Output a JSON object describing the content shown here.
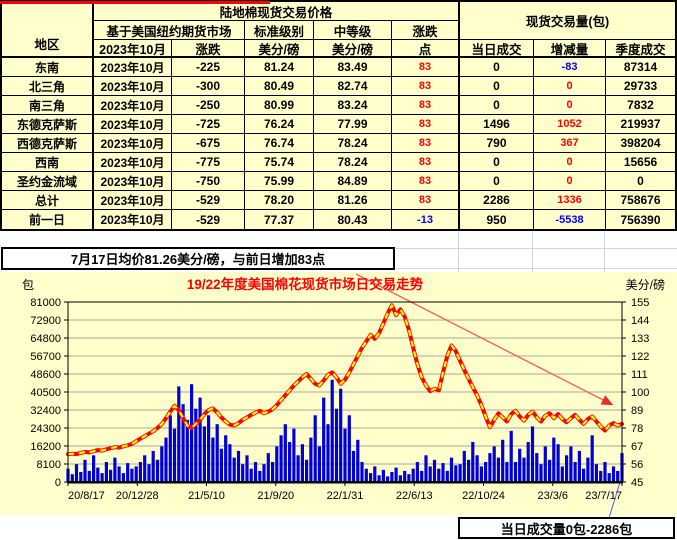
{
  "table": {
    "title": "陆地棉现货交易价格",
    "volume_title": "现货交易量(包)",
    "region_header": "地区",
    "group_headers": {
      "futures": "基于美国纽约期货市场",
      "standard": "标准级别",
      "middle": "中等级",
      "change": "涨跌"
    },
    "col_headers": {
      "month": "2023年10月",
      "change": "涨跌",
      "std_unit": "美分/磅",
      "mid_unit": "美分/磅",
      "points": "点",
      "daily": "当日成交",
      "delta": "增减量",
      "quarter": "季度成交"
    },
    "rows": [
      {
        "region": "东南",
        "month": "2023年10月",
        "change": "-225",
        "std": "81.24",
        "mid": "83.49",
        "pts": "83",
        "pts_color": "red",
        "daily": "0",
        "delta": "-83",
        "delta_color": "blue",
        "quarter": "87314"
      },
      {
        "region": "北三角",
        "month": "2023年10月",
        "change": "-300",
        "std": "80.49",
        "mid": "82.74",
        "pts": "83",
        "pts_color": "red",
        "daily": "0",
        "delta": "0",
        "delta_color": "red",
        "quarter": "29733"
      },
      {
        "region": "南三角",
        "month": "2023年10月",
        "change": "-250",
        "std": "80.99",
        "mid": "83.24",
        "pts": "83",
        "pts_color": "red",
        "daily": "0",
        "delta": "0",
        "delta_color": "red",
        "quarter": "7832"
      },
      {
        "region": "东德克萨斯",
        "month": "2023年10月",
        "change": "-725",
        "std": "76.24",
        "mid": "77.99",
        "pts": "83",
        "pts_color": "red",
        "daily": "1496",
        "delta": "1052",
        "delta_color": "red",
        "quarter": "219937"
      },
      {
        "region": "西德克萨斯",
        "month": "2023年10月",
        "change": "-675",
        "std": "76.74",
        "mid": "78.24",
        "pts": "83",
        "pts_color": "red",
        "daily": "790",
        "delta": "367",
        "delta_color": "red",
        "quarter": "398204"
      },
      {
        "region": "西南",
        "month": "2023年10月",
        "change": "-775",
        "std": "75.74",
        "mid": "78.24",
        "pts": "83",
        "pts_color": "red",
        "daily": "0",
        "delta": "0",
        "delta_color": "red",
        "quarter": "15656"
      },
      {
        "region": "圣约金流域",
        "month": "2023年10月",
        "change": "-750",
        "std": "75.99",
        "mid": "84.89",
        "pts": "83",
        "pts_color": "red",
        "daily": "0",
        "delta": "0",
        "delta_color": "red",
        "quarter": "0"
      },
      {
        "region": "总计",
        "month": "2023年10月",
        "change": "-529",
        "std": "78.20",
        "mid": "81.26",
        "pts": "83",
        "pts_color": "red",
        "daily": "2286",
        "delta": "1336",
        "delta_color": "red",
        "quarter": "758676"
      },
      {
        "region": "前一日",
        "month": "2023年10月",
        "change": "-529",
        "std": "77.37",
        "mid": "80.43",
        "pts": "-13",
        "pts_color": "blue",
        "daily": "950",
        "delta": "-5538",
        "delta_color": "blue",
        "quarter": "756390"
      }
    ]
  },
  "note_text": "7月17日均价81.26美分/磅，与前日增加83点",
  "footer_box_text": "当日成交量0包-2286包",
  "chart_data": {
    "type": "bar+line",
    "title": "19/22年度美国棉花现货市场日交易走势",
    "left_axis_unit": "包",
    "right_axis_unit": "美分/磅",
    "left_ticks": [
      0,
      8100,
      16200,
      24300,
      32400,
      40500,
      48600,
      56700,
      64800,
      72900,
      81000
    ],
    "right_ticks": [
      45,
      56,
      67,
      78,
      89,
      100,
      111,
      122,
      133,
      144,
      155
    ],
    "left_ylim": [
      0,
      81000
    ],
    "right_ylim": [
      45,
      155
    ],
    "x_labels": [
      "20/8/17",
      "20/12/28",
      "21/5/10",
      "21/9/20",
      "22/1/31",
      "22/6/13",
      "22/10/24",
      "23/3/6",
      "23/7/17"
    ],
    "grid": "horizontal",
    "series": [
      {
        "name": "price_cents_per_lb",
        "type": "line",
        "axis": "right",
        "values": [
          62.0,
          62.3,
          62.1,
          62.8,
          63.4,
          63.0,
          63.8,
          64.5,
          64.2,
          65.0,
          65.6,
          66.3,
          66.0,
          66.8,
          67.4,
          68.2,
          70.0,
          71.5,
          73.0,
          74.5,
          76.0,
          78.0,
          80.5,
          84.0,
          88.0,
          91.5,
          89.0,
          84.0,
          79.5,
          78.0,
          80.5,
          83.0,
          86.5,
          89.0,
          90.0,
          87.5,
          84.5,
          82.0,
          80.0,
          79.5,
          81.0,
          83.0,
          84.5,
          86.0,
          87.5,
          88.5,
          87.0,
          88.0,
          89.5,
          92.0,
          95.0,
          98.0,
          101.0,
          104.0,
          106.5,
          109.0,
          111.0,
          108.0,
          105.0,
          104.0,
          107.0,
          110.5,
          112.0,
          109.0,
          105.0,
          107.5,
          112.0,
          117.0,
          122.0,
          127.0,
          131.0,
          135.0,
          132.5,
          136.0,
          142.0,
          148.0,
          153.0,
          147.0,
          150.5,
          146.0,
          138.0,
          127.0,
          117.0,
          109.0,
          104.0,
          100.5,
          102.0,
          101.0,
          112.0,
          122.0,
          128.5,
          125.0,
          119.0,
          113.5,
          108.0,
          103.0,
          98.0,
          92.0,
          85.0,
          78.5,
          83.0,
          87.0,
          84.5,
          82.0,
          86.5,
          88.5,
          85.0,
          82.5,
          86.0,
          88.0,
          84.5,
          82.0,
          85.5,
          87.0,
          84.0,
          86.5,
          83.5,
          81.5,
          84.0,
          86.0,
          83.0,
          80.5,
          83.5,
          85.0,
          82.0,
          79.0,
          76.5,
          79.5,
          81.0,
          79.5,
          80.5
        ]
      },
      {
        "name": "daily_volume_bales",
        "type": "bar",
        "axis": "left",
        "values": [
          6000,
          3500,
          8000,
          4500,
          10000,
          5000,
          12000,
          6500,
          4000,
          9000,
          5500,
          11000,
          7000,
          4000,
          8500,
          6000,
          7000,
          9000,
          12000,
          8000,
          14000,
          10000,
          16000,
          20000,
          30000,
          24000,
          43000,
          35000,
          28000,
          44000,
          33000,
          38000,
          25000,
          30000,
          20000,
          26000,
          15000,
          21000,
          17000,
          11000,
          14000,
          8000,
          12000,
          6000,
          9000,
          5000,
          8000,
          13000,
          9000,
          16000,
          21000,
          26000,
          18000,
          24000,
          12000,
          17000,
          10000,
          20000,
          30000,
          16000,
          38000,
          26000,
          46000,
          33000,
          42000,
          24000,
          30000,
          14000,
          19000,
          9000,
          6000,
          4000,
          7000,
          3000,
          5500,
          2500,
          4500,
          6500,
          3000,
          5000,
          3500,
          6000,
          9000,
          5000,
          12000,
          7000,
          10000,
          6000,
          8500,
          5000,
          11000,
          7500,
          8000,
          14000,
          10000,
          18000,
          12000,
          7000,
          9000,
          13000,
          16000,
          11000,
          19000,
          9000,
          23000,
          9000,
          15000,
          11000,
          18000,
          25000,
          13000,
          8000,
          16000,
          10000,
          20000,
          17000,
          7000,
          12000,
          16000,
          9000,
          14000,
          6000,
          11000,
          21000,
          8000,
          5000,
          9000,
          4000,
          7000,
          5000,
          13000
        ]
      }
    ],
    "annotations": {
      "trend_arrow": "diagonal red arrow pointing down-right to ~89 level"
    }
  },
  "colors": {
    "sheet_bg": "#FFFFCC",
    "bar_blue": "#0000DD",
    "line_red": "#FF0000",
    "line_yellow": "#FFFF00",
    "grid_gray": "#A8A89A",
    "value_red": "#FF0000",
    "value_blue": "#0000FF",
    "arrow_red": "#FF5A5A",
    "top_line_red": "#FF0000"
  }
}
